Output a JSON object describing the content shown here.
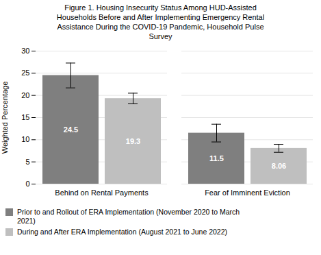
{
  "chart_data": {
    "type": "bar",
    "title": "Figure 1. Housing Insecurity Status Among HUD-Assisted\nHouseholds Before and After Implementing Emergency Rental\nAssistance During the COVID-19 Pandemic, Household Pulse\nSurvey",
    "categories": [
      "Behind on Rental Payments",
      "Fear of Imminent Eviction"
    ],
    "series": [
      {
        "name": "Prior to and Rollout of ERA Implementation (November 2020 to March\n2021)",
        "color": "#7f7f7f",
        "values": [
          24.5,
          11.5
        ],
        "errors": [
          2.8,
          2.0
        ]
      },
      {
        "name": "During and After ERA Implementation (August 2021 to June 2022)",
        "color": "#bfbfbf",
        "values": [
          19.3,
          8.06
        ],
        "errors": [
          1.2,
          0.9
        ]
      }
    ],
    "ylabel": "Weighted Percentage",
    "ylim": [
      0,
      30
    ],
    "yticks": [
      0,
      5,
      10,
      15,
      20,
      25,
      30
    ],
    "grid": true,
    "data_labels": true,
    "legend": "lower left"
  }
}
